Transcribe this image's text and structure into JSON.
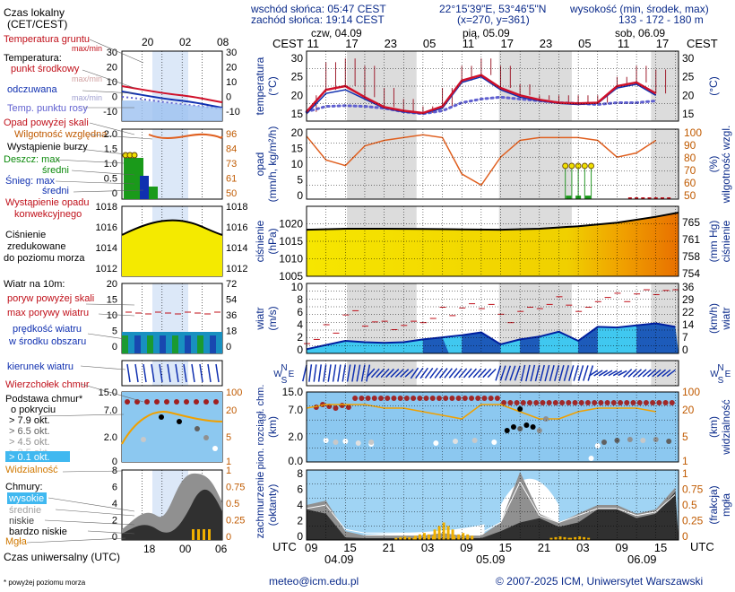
{
  "header": {
    "title_line1": "Czas lokalny",
    "title_line2": "(CET/CEST)",
    "sunrise": "wschód słońca: 05:47 CEST",
    "sunset": "zachód słońca: 19:14 CEST",
    "coords": "22°15'39\"E, 53°46'5\"N",
    "grid": "(x=270, y=361)",
    "height_label": "wysokość (min, środek, max)",
    "height_values": "133 - 172 - 180 m"
  },
  "time": {
    "cest_label": "CEST",
    "utc_label": "UTC",
    "days": [
      "czw, 04.09",
      "pią, 05.09",
      "sob, 06.09"
    ],
    "local_ticks": [
      "11",
      "17",
      "23",
      "05",
      "11",
      "17",
      "23",
      "05",
      "11",
      "17"
    ],
    "utc_ticks": [
      "09",
      "15",
      "21",
      "03",
      "09",
      "15",
      "21",
      "03",
      "09",
      "15"
    ],
    "utc_dates": [
      "04.09",
      "05.09",
      "06.09"
    ],
    "legend_top_ticks": [
      "20",
      "02",
      "08"
    ],
    "legend_bottom_ticks": [
      "18",
      "00",
      "06"
    ],
    "utc_caption": "Czas uniwersalny (UTC)"
  },
  "legend": {
    "temp": {
      "title": "Temperatura gruntu",
      "maxmin": "max/min",
      "heading": "Temperatura:",
      "mid": "punkt środkowy",
      "maxmin2": "max/min",
      "feel": "odczuwana",
      "maxmin3": "max/min",
      "dew": "Temp. punktu rosy",
      "left_axis": [
        "30",
        "20",
        "10",
        "0",
        "-10"
      ],
      "right_axis": [
        "30",
        "20",
        "10",
        "0",
        "-10"
      ]
    },
    "precip": {
      "over": "Opad powyżej skali",
      "rh": "Wilgotność względna",
      "storm": "Wystąpienie burzy",
      "rain_max": "Deszcz: max",
      "rain_mid": "średni",
      "snow": "Śnieg: max",
      "snow_mid": "średni",
      "occur1": "Wystąpienie opadu",
      "occur2": "konwekcyjnego",
      "left_axis": [
        "2.0",
        "1.5",
        "1.0",
        "0.5",
        "0"
      ],
      "right_axis": [
        "96",
        "84",
        "73",
        "61",
        "50"
      ]
    },
    "pressure": {
      "l1": "Ciśnienie",
      "l2": "zredukowane",
      "l3": "do poziomu morza",
      "left_axis": [
        "1018",
        "1016",
        "1014",
        "1012"
      ],
      "right_axis": [
        "1018",
        "1016",
        "1014",
        "1012"
      ]
    },
    "wind": {
      "title": "Wiatr na 10m:",
      "gust_over": "poryw powyżej skali",
      "gust_max": "max porywy wiatru",
      "mean1": "prędkość wiatru",
      "mean2": "w środku obszaru",
      "left_axis": [
        "20",
        "15",
        "10",
        "5",
        "0"
      ],
      "right_axis": [
        "72",
        "54",
        "36",
        "18",
        "0"
      ]
    },
    "dir": {
      "title": "kierunek wiatru"
    },
    "cloud": {
      "top": "Wierzchołek chmur",
      "base1": "Podstawa chmur*",
      "base2": "o pokryciu",
      "o1": "> 7.9 okt.",
      "o2": "> 6.5 okt.",
      "o3": "> 4.5 okt.",
      "o4": "> 2.5 okt.",
      "o5": "> 0.1 okt.",
      "vis": "Widzialność",
      "left_axis": [
        "15.0",
        "7.0",
        "2.0",
        "0"
      ],
      "right_axis": [
        "100",
        "20",
        "5",
        "1"
      ]
    },
    "cover": {
      "title": "Chmury:",
      "high": "wysokie",
      "mid": "średnie",
      "low": "niskie",
      "vlow": "bardzo niskie",
      "fog": "Mgła",
      "left_axis": [
        "8",
        "6",
        "4",
        "2",
        "0"
      ],
      "right_axis": [
        "1",
        "0.75",
        "0.5",
        "0.25",
        "0"
      ]
    }
  },
  "axes": {
    "temp": {
      "ylabel": "temperatura",
      "unit": "(°C)",
      "ticks": [
        "30",
        "25",
        "20",
        "15"
      ]
    },
    "precip": {
      "ylabel": "opad",
      "unit": "(mm/h, kg/m²/h)",
      "left_ticks": [
        "20",
        "15",
        "10",
        "5",
        "0"
      ],
      "rlabel": "wilgotność wzgl.",
      "runit": "(%)",
      "right_ticks": [
        "100",
        "90",
        "80",
        "70",
        "60",
        "50"
      ]
    },
    "pressure": {
      "ylabel": "ciśnienie",
      "unit": "(hPa)",
      "left_ticks": [
        "1020",
        "1015",
        "1010",
        "1005"
      ],
      "rlabel": "ciśnienie",
      "runit": "(mm Hg)",
      "right_ticks": [
        "765",
        "761",
        "758",
        "754"
      ]
    },
    "wind": {
      "ylabel": "wiatr",
      "unit": "(m/s)",
      "left_ticks": [
        "10",
        "8",
        "6",
        "4",
        "2",
        "0"
      ],
      "rlabel": "wiatr",
      "runit": "(km/h)",
      "right_ticks": [
        "36",
        "29",
        "22",
        "14",
        "7",
        "0"
      ]
    },
    "dir": {
      "compass": "NWES"
    },
    "cloud": {
      "ylabel": "pion. rozciągł. chm.",
      "unit": "(km)",
      "left_ticks": [
        "15.0",
        "7.0",
        "2.0",
        "0.0"
      ],
      "rlabel": "widzialność",
      "runit": "(km)",
      "right_ticks": [
        "100",
        "20",
        "5",
        "1"
      ]
    },
    "cover": {
      "ylabel": "zachmurzenie",
      "unit": "(oktanty)",
      "left_ticks": [
        "8",
        "6",
        "4",
        "2",
        "0"
      ],
      "rlabel": "mgła",
      "runit": "(frakcja)",
      "right_ticks": [
        "1",
        "0.75",
        "0.5",
        "0.25",
        "0"
      ]
    }
  },
  "footer": {
    "note": "* powyżej poziomu morza",
    "email": "meteo@icm.edu.pl",
    "copyright": "© 2007-2025 ICM, Uniwersytet Warszawski"
  },
  "colors": {
    "night": "#dcdcdc",
    "temp_line": "#d0102a",
    "feel": "#1030b0",
    "dew": "#6060d0",
    "rh": "#e06020",
    "pressure_fill": "#f0e000",
    "wind_light": "#40c8f0",
    "wind_dark": "#1848b0",
    "cloud_bg": "#8cc8f0",
    "cover_dark": "#303030",
    "cover_mid": "#909090",
    "fog": "#f0b000"
  },
  "chart_data": [
    {
      "type": "line",
      "title": "temperatura",
      "ylabel": "(°C)",
      "ylim": [
        13,
        32
      ],
      "x": [
        0,
        6,
        12,
        18,
        24,
        30,
        36,
        42,
        48,
        54,
        60,
        66,
        72,
        78,
        84,
        90,
        96,
        102,
        108
      ],
      "series": [
        {
          "name": "punkt środkowy",
          "values": [
            15.5,
            21.5,
            22.5,
            19.5,
            16.8,
            15.8,
            15.2,
            17,
            24,
            25.5,
            22,
            20,
            18.8,
            18,
            17.8,
            18,
            22.5,
            23.5,
            20.5
          ]
        },
        {
          "name": "odczuwana",
          "values": [
            15,
            20.5,
            21.5,
            19,
            16.5,
            15.5,
            15,
            16.5,
            23.5,
            25,
            21.5,
            19.5,
            18.5,
            17.8,
            17.5,
            17.8,
            22,
            23,
            20
          ]
        },
        {
          "name": "Temp. punktu rosy",
          "values": [
            15.5,
            17,
            17.2,
            17,
            16.5,
            15.5,
            15,
            15.8,
            18,
            19,
            19.5,
            19,
            18.5,
            18,
            17.8,
            17.5,
            18,
            18,
            18.5
          ]
        }
      ],
      "max": [
        20,
        29,
        30,
        28,
        22,
        19,
        17,
        22,
        28,
        30,
        28,
        23,
        20,
        20,
        20,
        20,
        25,
        28,
        27
      ]
    },
    {
      "type": "line",
      "title": "opad",
      "ylim": [
        0,
        20
      ],
      "rh_ylim": [
        50,
        100
      ],
      "x": [
        0,
        6,
        12,
        18,
        24,
        30,
        36,
        42,
        48,
        54,
        60,
        66,
        72,
        78,
        84,
        90,
        96,
        102,
        108
      ],
      "series": [
        {
          "name": "Wilgotność względna",
          "values": [
            95,
            78,
            74,
            88,
            92,
            94,
            96,
            94,
            68,
            60,
            80,
            92,
            94,
            94,
            94,
            92,
            80,
            83,
            92
          ]
        }
      ],
      "precip_max": [
        0,
        0,
        0,
        0,
        0,
        0,
        0,
        0,
        0,
        0,
        0,
        0,
        0,
        8,
        8,
        8,
        0,
        0,
        0
      ],
      "precip_mean": [
        0,
        0,
        0,
        0,
        0,
        0,
        0,
        0,
        0,
        0,
        0,
        0,
        0,
        1,
        1,
        1,
        0,
        0,
        0
      ]
    },
    {
      "type": "area",
      "title": "ciśnienie",
      "ylabel": "(hPa)",
      "ylim": [
        1005,
        1025
      ],
      "x": [
        0,
        12,
        24,
        36,
        48,
        60,
        72,
        84,
        96,
        108,
        116
      ],
      "values": [
        1018.3,
        1018.6,
        1018.6,
        1018.5,
        1018.4,
        1018.3,
        1018.6,
        1019.3,
        1020.3,
        1022,
        1023.2
      ]
    },
    {
      "type": "area",
      "title": "wiatr",
      "ylabel": "(m/s)",
      "ylim": [
        0,
        10
      ],
      "x": [
        0,
        6,
        12,
        18,
        24,
        30,
        36,
        42,
        48,
        54,
        60,
        66,
        72,
        78,
        84,
        90,
        96,
        102,
        108,
        114
      ],
      "series": [
        {
          "name": "prędkość wiatru",
          "values": [
            0.6,
            1.2,
            1.8,
            1.6,
            1.5,
            1.6,
            2,
            2.3,
            2.6,
            3,
            1.3,
            2,
            2.4,
            3.1,
            1.8,
            3.8,
            3.7,
            4,
            4.3,
            3.8
          ]
        },
        {
          "name": "max porywy wiatru",
          "values": [
            2,
            3.5,
            5.5,
            4.5,
            4,
            4,
            5,
            6,
            6.5,
            7,
            5,
            6,
            7,
            7.5,
            6,
            8,
            8,
            8.5,
            9,
            8.5
          ]
        }
      ]
    },
    {
      "type": "line",
      "title": "pion. rozciągł. chm.",
      "ylabel": "(km)",
      "ylim": [
        0,
        15
      ],
      "x": [
        0,
        6,
        12,
        18,
        24,
        30,
        36,
        42,
        48,
        54,
        60,
        66,
        72,
        78,
        84,
        90,
        96,
        102,
        108
      ],
      "series": [
        {
          "name": "Widzialność",
          "values": [
            9,
            10,
            10,
            10,
            9,
            9,
            8,
            7,
            6,
            10,
            10,
            8,
            6,
            6,
            8,
            9,
            9,
            9,
            8
          ]
        }
      ]
    },
    {
      "type": "area",
      "title": "zachmurzenie",
      "ylabel": "(oktanty)",
      "ylim": [
        0,
        8
      ],
      "x": [
        0,
        6,
        12,
        18,
        24,
        30,
        36,
        42,
        48,
        54,
        60,
        66,
        72,
        78,
        84,
        90,
        96,
        102,
        108,
        114
      ],
      "series": [
        {
          "name": "niskie",
          "values": [
            4,
            4.5,
            1,
            0.5,
            0.5,
            0.5,
            0.5,
            0.8,
            0.5,
            0.5,
            2,
            7.8,
            3,
            2,
            3,
            4,
            4,
            3,
            3.5,
            6
          ]
        },
        {
          "name": "bardzo niskie",
          "values": [
            3.5,
            3,
            0.3,
            0.2,
            0.2,
            0.2,
            0.2,
            0.2,
            0.2,
            0.2,
            1,
            2,
            2.5,
            1.5,
            2,
            3.5,
            3.5,
            2.5,
            3,
            5.5
          ]
        }
      ],
      "fog": [
        0,
        0,
        0,
        0,
        0,
        0.05,
        0.1,
        0.25,
        0.1,
        0,
        0,
        0,
        0,
        0.05,
        0.05,
        0,
        0,
        0,
        0,
        0
      ]
    }
  ]
}
